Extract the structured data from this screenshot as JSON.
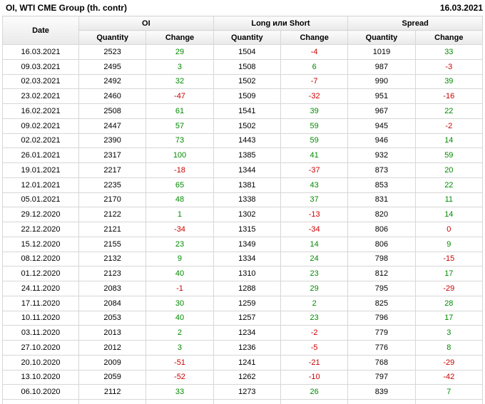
{
  "header": {
    "title": "OI, WTI CME Group (th. contr)",
    "date": "16.03.2021"
  },
  "colors": {
    "positive": "#008b00",
    "negative": "#cc0000",
    "border": "#d7d7d7"
  },
  "table": {
    "columns": {
      "date": "Date",
      "groups": [
        {
          "label": "OI"
        },
        {
          "label": "Long или Short"
        },
        {
          "label": "Spread"
        }
      ],
      "sub": {
        "quantity": "Quantity",
        "change": "Change"
      }
    },
    "rows": [
      [
        "16.03.2021",
        2523,
        29,
        1504,
        -4,
        1019,
        33
      ],
      [
        "09.03.2021",
        2495,
        3,
        1508,
        6,
        987,
        -3
      ],
      [
        "02.03.2021",
        2492,
        32,
        1502,
        -7,
        990,
        39
      ],
      [
        "23.02.2021",
        2460,
        -47,
        1509,
        -32,
        951,
        -16
      ],
      [
        "16.02.2021",
        2508,
        61,
        1541,
        39,
        967,
        22
      ],
      [
        "09.02.2021",
        2447,
        57,
        1502,
        59,
        945,
        -2
      ],
      [
        "02.02.2021",
        2390,
        73,
        1443,
        59,
        946,
        14
      ],
      [
        "26.01.2021",
        2317,
        100,
        1385,
        41,
        932,
        59
      ],
      [
        "19.01.2021",
        2217,
        -18,
        1344,
        -37,
        873,
        20
      ],
      [
        "12.01.2021",
        2235,
        65,
        1381,
        43,
        853,
        22
      ],
      [
        "05.01.2021",
        2170,
        48,
        1338,
        37,
        831,
        11
      ],
      [
        "29.12.2020",
        2122,
        1,
        1302,
        -13,
        820,
        14
      ],
      [
        "22.12.2020",
        2121,
        -34,
        1315,
        -34,
        806,
        0
      ],
      [
        "15.12.2020",
        2155,
        23,
        1349,
        14,
        806,
        9
      ],
      [
        "08.12.2020",
        2132,
        9,
        1334,
        24,
        798,
        -15
      ],
      [
        "01.12.2020",
        2123,
        40,
        1310,
        23,
        812,
        17
      ],
      [
        "24.11.2020",
        2083,
        -1,
        1288,
        29,
        795,
        -29
      ],
      [
        "17.11.2020",
        2084,
        30,
        1259,
        2,
        825,
        28
      ],
      [
        "10.11.2020",
        2053,
        40,
        1257,
        23,
        796,
        17
      ],
      [
        "03.11.2020",
        2013,
        2,
        1234,
        -2,
        779,
        3
      ],
      [
        "27.10.2020",
        2012,
        3,
        1236,
        -5,
        776,
        8
      ],
      [
        "20.10.2020",
        2009,
        -51,
        1241,
        -21,
        768,
        -29
      ],
      [
        "13.10.2020",
        2059,
        -52,
        1262,
        -10,
        797,
        -42
      ],
      [
        "06.10.2020",
        2112,
        33,
        1273,
        26,
        839,
        7
      ]
    ]
  }
}
